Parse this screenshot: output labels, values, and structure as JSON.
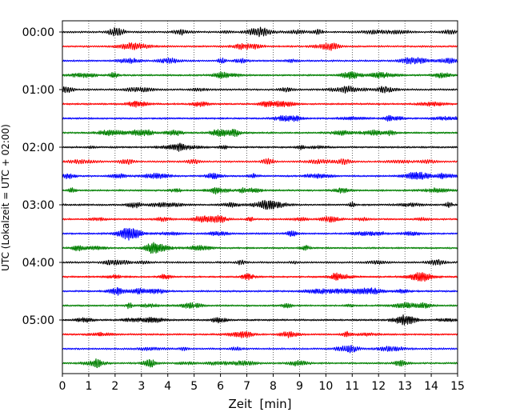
{
  "chart_data": {
    "type": "line",
    "title": "",
    "xlabel": "Zeit  [min]",
    "ylabel": "UTC (Lokalzeit = UTC + 02:00)",
    "xlim": [
      0,
      15
    ],
    "x_ticks": [
      "0",
      "1",
      "2",
      "3",
      "4",
      "5",
      "6",
      "7",
      "8",
      "9",
      "10",
      "11",
      "12",
      "13",
      "14",
      "15"
    ],
    "y_ticks": [
      "00:00",
      "01:00",
      "02:00",
      "03:00",
      "04:00",
      "05:00"
    ],
    "grid": "vertical dotted lines at each minute",
    "trace_interval_minutes": 15,
    "trace_count": 24,
    "trace_colors": [
      "#000000",
      "#ff0000",
      "#0000ff",
      "#008000"
    ],
    "series": [
      {
        "start": "00:00",
        "color": "#000000"
      },
      {
        "start": "00:15",
        "color": "#ff0000"
      },
      {
        "start": "00:30",
        "color": "#0000ff"
      },
      {
        "start": "00:45",
        "color": "#008000"
      },
      {
        "start": "01:00",
        "color": "#000000"
      },
      {
        "start": "01:15",
        "color": "#ff0000"
      },
      {
        "start": "01:30",
        "color": "#0000ff"
      },
      {
        "start": "01:45",
        "color": "#008000"
      },
      {
        "start": "02:00",
        "color": "#000000"
      },
      {
        "start": "02:15",
        "color": "#ff0000"
      },
      {
        "start": "02:30",
        "color": "#0000ff"
      },
      {
        "start": "02:45",
        "color": "#008000"
      },
      {
        "start": "03:00",
        "color": "#000000"
      },
      {
        "start": "03:15",
        "color": "#ff0000"
      },
      {
        "start": "03:30",
        "color": "#0000ff"
      },
      {
        "start": "03:45",
        "color": "#008000"
      },
      {
        "start": "04:00",
        "color": "#000000"
      },
      {
        "start": "04:15",
        "color": "#ff0000"
      },
      {
        "start": "04:30",
        "color": "#0000ff"
      },
      {
        "start": "04:45",
        "color": "#008000"
      },
      {
        "start": "05:00",
        "color": "#000000"
      },
      {
        "start": "05:15",
        "color": "#ff0000"
      },
      {
        "start": "05:30",
        "color": "#0000ff"
      },
      {
        "start": "05:45",
        "color": "#008000"
      }
    ]
  }
}
